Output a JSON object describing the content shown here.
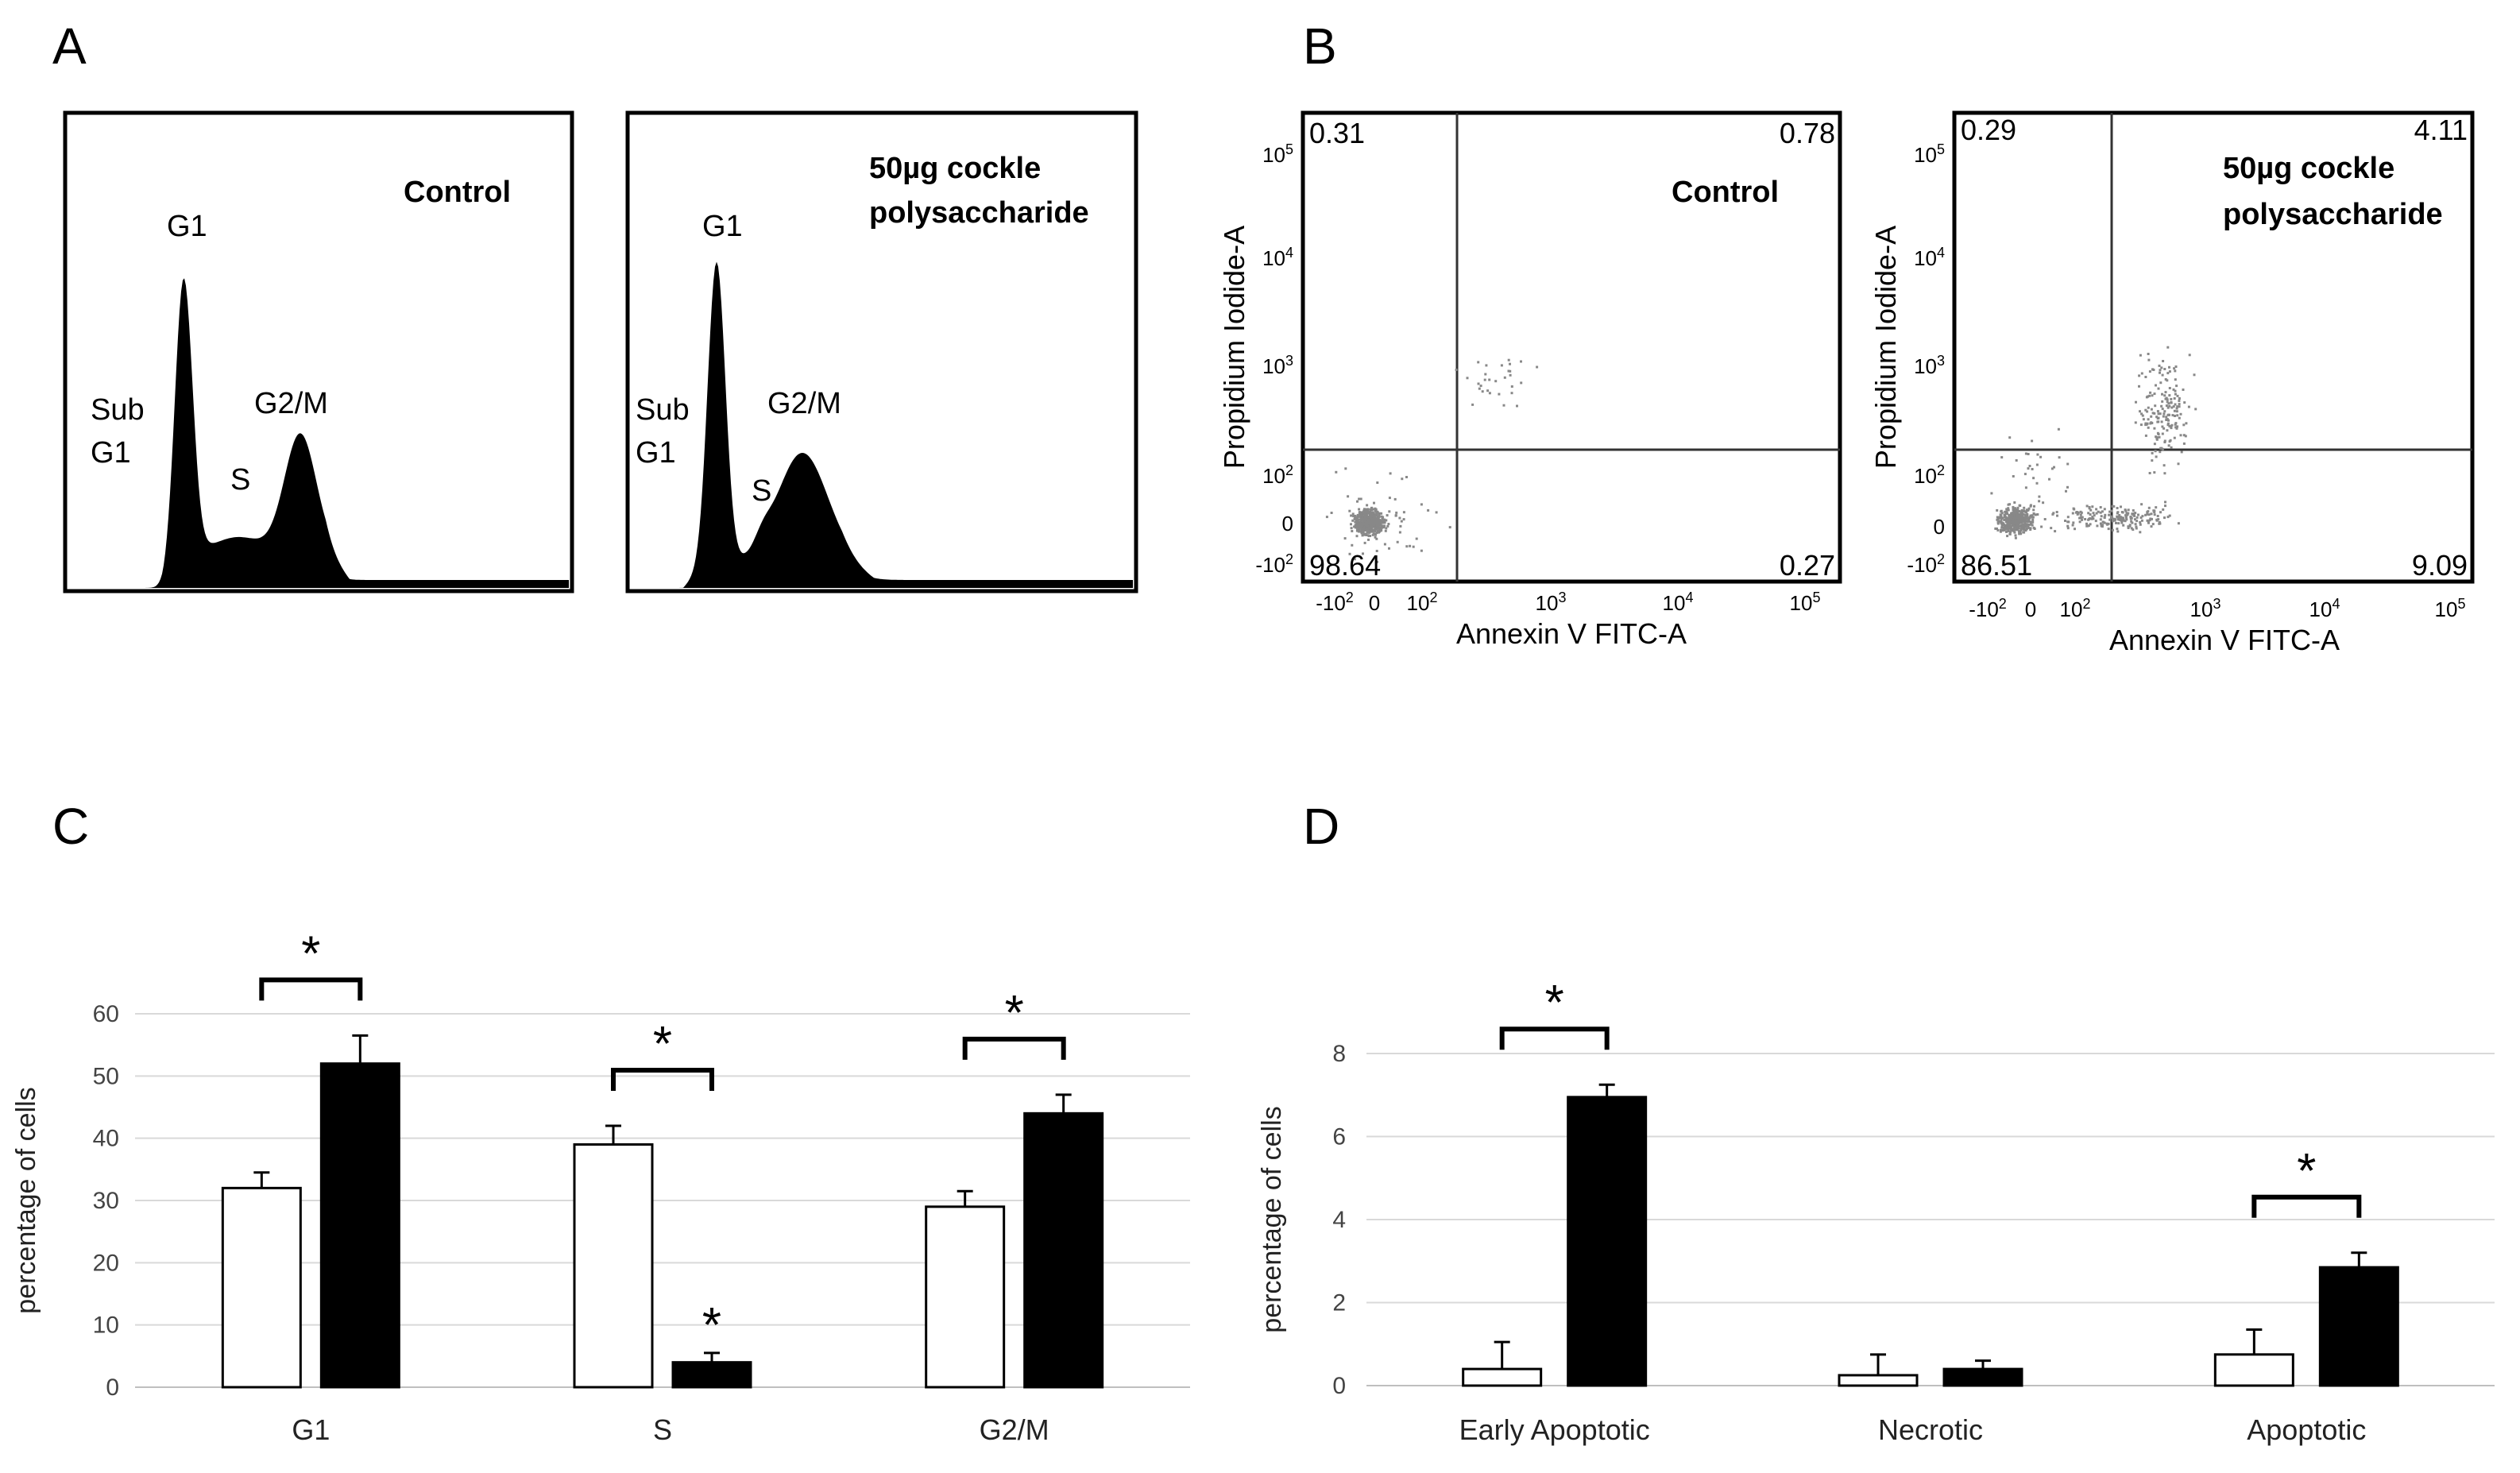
{
  "panels": {
    "A": {
      "label": "A",
      "left": {
        "condition": "Control",
        "peaks": {
          "g1": "G1",
          "sub_line1": "Sub",
          "sub_line2": "G1",
          "s": "S",
          "g2m": "G2/M"
        }
      },
      "right": {
        "condition_line1": "50µg cockle",
        "condition_line2": "polysaccharide",
        "peaks": {
          "g1": "G1",
          "sub_line1": "Sub",
          "sub_line2": "G1",
          "s": "S",
          "g2m": "G2/M"
        }
      }
    },
    "B": {
      "label": "B",
      "left": {
        "condition": "Control",
        "quadrants": {
          "ul": "0.31",
          "ur": "0.78",
          "ll": "98.64",
          "lr": "0.27"
        },
        "xlabel": "Annexin V FITC-A",
        "ylabel": "Propidium Iodide-A"
      },
      "right": {
        "condition_line1": "50µg cockle",
        "condition_line2": "polysaccharide",
        "quadrants": {
          "ul": "0.29",
          "ur": "4.11",
          "ll": "86.51",
          "lr": "9.09"
        },
        "xlabel": "Annexin V FITC-A",
        "ylabel": "Propidium Iodide-A"
      }
    },
    "C": {
      "label": "C"
    },
    "D": {
      "label": "D"
    }
  },
  "chart_data": [
    {
      "id": "C",
      "type": "bar",
      "categories": [
        "G1",
        "S",
        "G2/M"
      ],
      "series": [
        {
          "name": "Control",
          "color": "#ffffff",
          "values": [
            32,
            39,
            29
          ],
          "errors": [
            2.5,
            3,
            2.5
          ]
        },
        {
          "name": "50µg cockle polysaccharide",
          "color": "#000000",
          "values": [
            52,
            4,
            44
          ],
          "errors": [
            4.5,
            1.5,
            3
          ]
        }
      ],
      "ylabel": "percentage of cells",
      "ylim": [
        0,
        60
      ],
      "yticks": [
        0,
        10,
        20,
        30,
        40,
        50,
        60
      ],
      "significance": [
        {
          "type": "bracket",
          "category": 0,
          "text": "*"
        },
        {
          "type": "bracket",
          "category": 1,
          "text": "*"
        },
        {
          "type": "bracket",
          "category": 2,
          "text": "*"
        },
        {
          "type": "bar",
          "category": 1,
          "series": 1,
          "text": "*"
        }
      ]
    },
    {
      "id": "D",
      "type": "bar",
      "categories": [
        "Early  Apoptotic",
        "Necrotic",
        "Apoptotic"
      ],
      "series": [
        {
          "name": "Control",
          "color": "#ffffff",
          "values": [
            0.4,
            0.25,
            0.75
          ],
          "errors": [
            0.65,
            0.5,
            0.6
          ]
        },
        {
          "name": "50µg cockle polysaccharide",
          "color": "#000000",
          "values": [
            6.95,
            0.4,
            2.85
          ],
          "errors": [
            0.3,
            0.2,
            0.35
          ]
        }
      ],
      "ylabel": "percentage of cells",
      "ylim": [
        0,
        8
      ],
      "yticks": [
        0,
        2,
        4,
        6,
        8
      ],
      "significance": [
        {
          "type": "bracket",
          "category": 0,
          "text": "*"
        },
        {
          "type": "bracket",
          "category": 2,
          "text": "*"
        }
      ]
    }
  ]
}
